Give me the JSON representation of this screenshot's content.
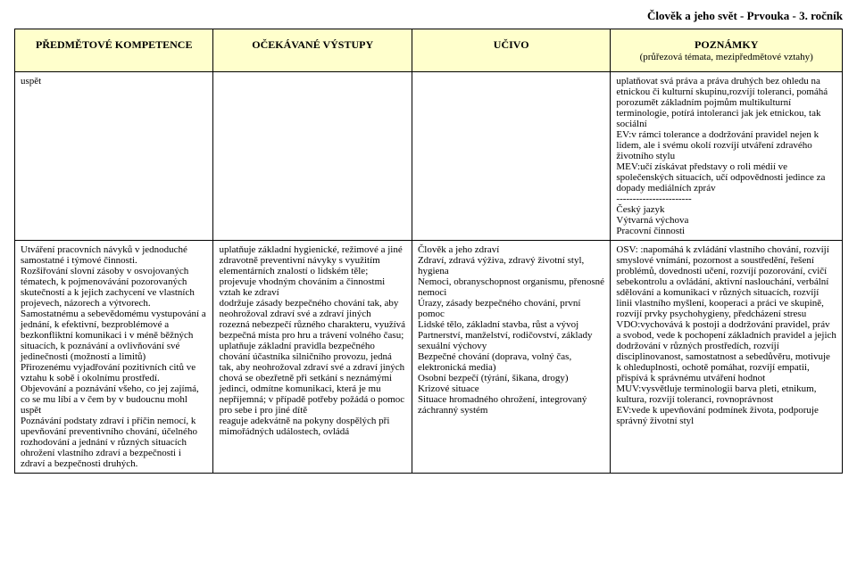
{
  "doc_title": "Člověk a jeho svět - Prvouka - 3. ročník",
  "headers": {
    "col1": "PŘEDMĚTOVÉ KOMPETENCE",
    "col2": "OČEKÁVANÉ VÝSTUPY",
    "col3": "UČIVO",
    "col4_line1": "POZNÁMKY",
    "col4_line2": "(průřezová témata, mezipředmětové vztahy)"
  },
  "row1": {
    "c1": "uspět",
    "c2": "",
    "c3": "",
    "c4": "uplatňovat svá práva a práva druhých bez ohledu na etnickou či kulturní skupinu,rozvíjí toleranci, pomáhá porozumět základním pojmům multikulturní terminologie, potírá intoleranci jak jek etnickou, tak sociální\nEV:v rámci tolerance a dodržování pravidel nejen k lidem, ale i svému okolí rozvíjí utváření zdravého životního stylu\nMEV:učí získávat představy o roli médií ve společenských situacích, učí odpovědnosti jedince za dopady mediálních zpráv\n-----------------------\nČeský jazyk\nVýtvarná výchova\nPracovní činnosti"
  },
  "row2": {
    "c1": "Utváření pracovních návyků v jednoduché samostatné i týmové činnosti.\nRozšiřování slovní zásoby v osvojovaných tématech, k pojmenovávání pozorovaných skutečností a k jejich zachycení ve vlastních projevech, názorech a výtvorech.\nSamostatnému a sebevědomému vystupování a jednání, k efektivní, bezproblémové a bezkonfliktní komunikaci i v méně běžných situacích, k poznávání a ovlivňování své jedinečnosti (možností a limitů)\nPřirozenému vyjadřování pozitivních citů ve vztahu k sobě i okolnímu prostředí.\nObjevování a poznávání všeho, co jej zajímá, co se mu líbí a v čem by v budoucnu mohl uspět\nPoznávání podstaty zdraví i příčin nemocí, k upevňování preventivního chování, účelného rozhodování a jednání v různých situacích ohrožení vlastního zdraví a bezpečnosti i zdraví a bezpečnosti druhých.",
    "c2": "uplatňuje základní hygienické, režimové a jiné zdravotně preventivní návyky s využitím elementárních znalostí o lidském těle; projevuje vhodným chováním a činnostmi vztah ke zdraví\ndodržuje zásady bezpečného chování tak, aby neohrožoval zdraví své a zdraví jiných\nrozezná nebezpečí různého charakteru, využívá bezpečná místa pro hru a trávení volného času; uplatňuje základní pravidla bezpečného chování účastníka silničního provozu, jedná tak, aby neohrožoval zdraví své a zdraví jiných\nchová se obezřetně při setkání s neznámými jedinci, odmítne komunikaci, která je mu nepříjemná; v případě potřeby požádá o pomoc pro sebe i pro jiné dítě\nreaguje adekvátně na pokyny dospělých při mimořádných událostech, ovládá",
    "c3": "Člověk a jeho zdraví\nZdraví, zdravá výživa, zdravý životní styl, hygiena\nNemoci, obranyschopnost organismu, přenosné nemoci\nÚrazy, zásady bezpečného chování, první pomoc\nLidské tělo, základní stavba, růst a vývoj\nPartnerství, manželství, rodičovství, základy sexuální výchovy\nBezpečné chování (doprava, volný čas, elektronická media)\nOsobní bezpečí (týrání, šikana, drogy)\nKrizové situace\nSituace hromadného ohrožení, integrovaný záchranný systém",
    "c4": "OSV: :napomáhá k zvládání vlastního chování, rozvíjí smyslové vnímání, pozornost a soustředění, řešení problémů, dovednosti učení, rozvíjí pozorování, cvičí sebekontrolu a ovládání, aktivní naslouchání, verbální sdělování a komunikaci v různých situacích, rozvíjí linii vlastního myšlení, kooperaci a práci ve skupině, rozvíjí prvky psychohygieny, předcházení stresu\nVDO:vychovává k postoji a dodržování pravidel, práv a svobod, vede k pochopení základních pravidel a jejich dodržování v různých prostředích, rozvíjí disciplinovanost, samostatnost a sebedůvěru, motivuje k ohleduplnosti, ochotě pomáhat, rozvíjí empatii, přispívá k správnému utváření hodnot\nMUV:vysvětluje terminologii barva pleti, etnikum, kultura, rozvíjí toleranci, rovnoprávnost\nEV:vede k upevňování podmínek života, podporuje správný životní styl"
  }
}
